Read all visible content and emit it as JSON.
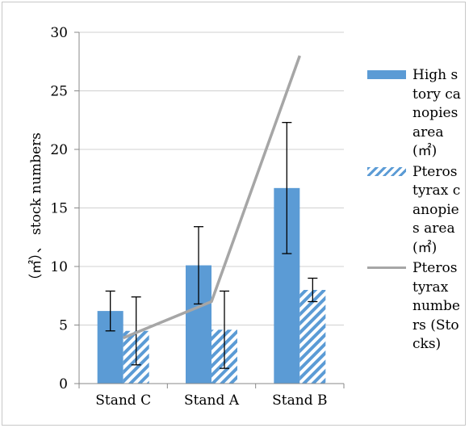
{
  "chart_data": {
    "type": "bar",
    "categories": [
      "Stand C",
      "Stand A",
      "Stand B"
    ],
    "ylabel": "（㎡）、 stock numbers",
    "ylim": [
      0,
      30
    ],
    "yticks": [
      0,
      5,
      10,
      15,
      20,
      25,
      30
    ],
    "grid": true,
    "legend_position": "right",
    "series": [
      {
        "name": "High story canopies area (㎡)",
        "type": "bar",
        "fill": "solid",
        "color": "#5b9bd5",
        "values": [
          6.2,
          10.1,
          16.7
        ],
        "error": [
          1.7,
          3.3,
          5.6
        ]
      },
      {
        "name": "Pterostyrax canopies area (㎡)",
        "type": "bar",
        "fill": "hatched",
        "color": "#5b9bd5",
        "values": [
          4.5,
          4.6,
          8.0
        ],
        "error": [
          2.9,
          3.3,
          1.0
        ]
      },
      {
        "name": "Pterostyrax numbers (Stocks)",
        "type": "line",
        "color": "#a6a6a6",
        "values": [
          3.9,
          7.0,
          28.0
        ]
      }
    ]
  }
}
